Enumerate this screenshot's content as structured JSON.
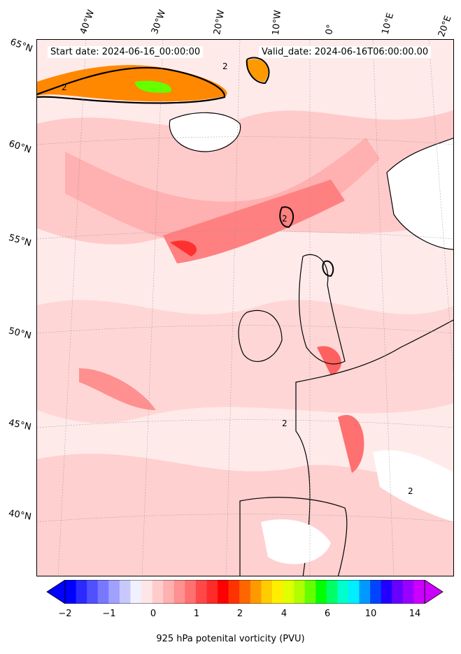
{
  "header": {
    "start_date": "Start date: 2024-06-16_00:00:00",
    "valid_date": "Valid_date: 2024-06-16T06:00:00.00"
  },
  "longitude_labels": [
    "40°W",
    "30°W",
    "20°W",
    "10°W",
    "0°",
    "10°E",
    "20°E"
  ],
  "latitude_labels": [
    "65°N",
    "60°N",
    "55°N",
    "50°N",
    "45°N",
    "40°N"
  ],
  "contour_label": "2",
  "colorbar": {
    "title": "925 hPa potenital vorticity (PVU)",
    "tick_labels": [
      "−2",
      "−1",
      "0",
      "1",
      "2",
      "4",
      "6",
      "10",
      "14"
    ],
    "colors": [
      "#0000ff",
      "#2a2aff",
      "#5050ff",
      "#7878ff",
      "#a0a0ff",
      "#c8c8ff",
      "#f0f0ff",
      "#ffe6e6",
      "#ffcccc",
      "#ffb0b0",
      "#ff9090",
      "#ff7070",
      "#ff4848",
      "#ff2a2a",
      "#ff0000",
      "#ff3300",
      "#ff6600",
      "#ff9900",
      "#ffcc00",
      "#ffee00",
      "#e0ff00",
      "#b0ff00",
      "#66ff00",
      "#00ff00",
      "#00ff66",
      "#00ffcc",
      "#00eeff",
      "#0099ff",
      "#0044ff",
      "#2200ff",
      "#6600ff",
      "#9900ff",
      "#cc00ff"
    ]
  }
}
